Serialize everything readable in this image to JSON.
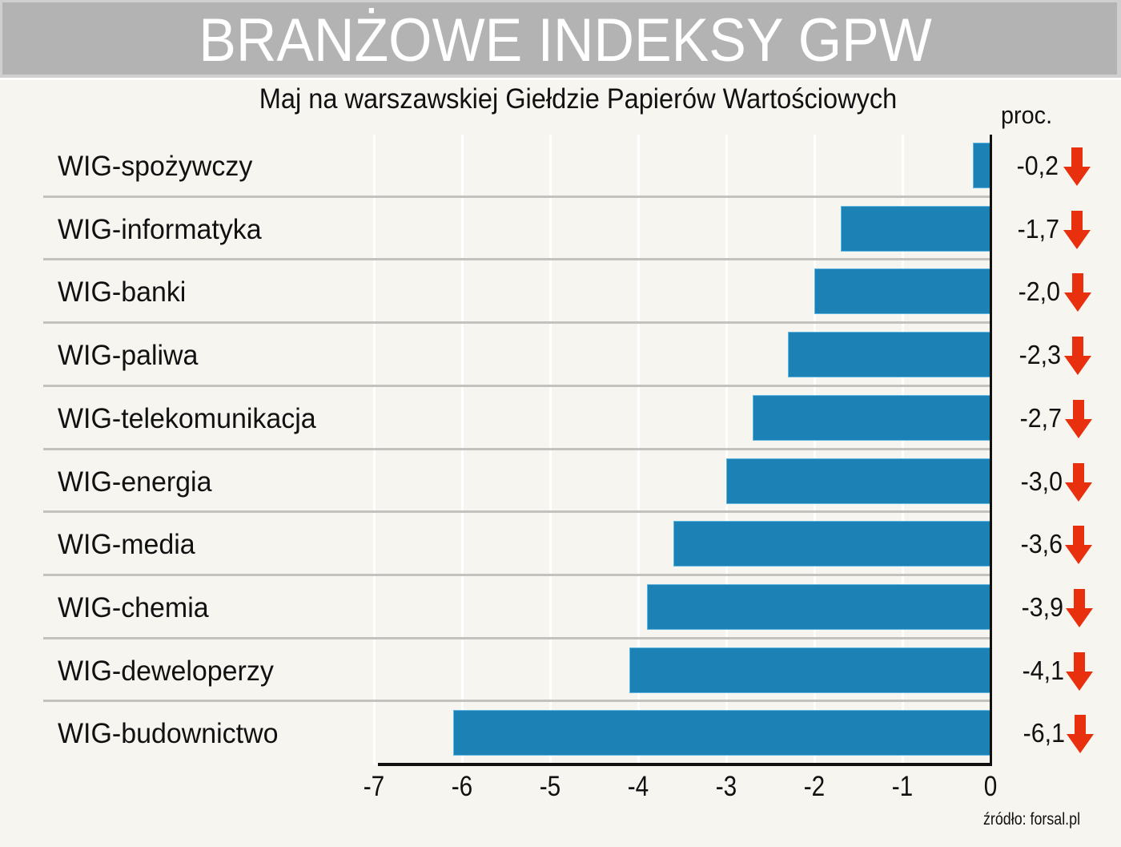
{
  "header": {
    "title": "BRANŻOWE INDEKSY GPW",
    "subtitle": "Maj na warszawskiej Giełdzie Papierów Wartościowych",
    "unit": "proc."
  },
  "source": "źródło: forsal.pl",
  "colors": {
    "bar": "#1c82b5",
    "arrow_down": "#e8300f",
    "header_bg": "#b3b3b3",
    "background": "#f7f5f0"
  },
  "rows": [
    {
      "label": "WIG-spożywczy",
      "value": -0.2,
      "value_text": "-0,2",
      "trend_icon": "arrow-down-icon"
    },
    {
      "label": "WIG-informatyka",
      "value": -1.7,
      "value_text": "-1,7",
      "trend_icon": "arrow-down-icon"
    },
    {
      "label": "WIG-banki",
      "value": -2.0,
      "value_text": "-2,0",
      "trend_icon": "arrow-down-icon"
    },
    {
      "label": "WIG-paliwa",
      "value": -2.3,
      "value_text": "-2,3",
      "trend_icon": "arrow-down-icon"
    },
    {
      "label": "WIG-telekomunikacja",
      "value": -2.7,
      "value_text": "-2,7",
      "trend_icon": "arrow-down-icon"
    },
    {
      "label": "WIG-energia",
      "value": -3.0,
      "value_text": "-3,0",
      "trend_icon": "arrow-down-icon"
    },
    {
      "label": "WIG-media",
      "value": -3.6,
      "value_text": "-3,6",
      "trend_icon": "arrow-down-icon"
    },
    {
      "label": "WIG-chemia",
      "value": -3.9,
      "value_text": "-3,9",
      "trend_icon": "arrow-down-icon"
    },
    {
      "label": "WIG-deweloperzy",
      "value": -4.1,
      "value_text": "-4,1",
      "trend_icon": "arrow-down-icon"
    },
    {
      "label": "WIG-budownictwo",
      "value": -6.1,
      "value_text": "-6,1",
      "trend_icon": "arrow-down-icon"
    }
  ],
  "axis": {
    "ticks": [
      "-7",
      "-6",
      "-5",
      "-4",
      "-3",
      "-2",
      "-1",
      "0"
    ]
  },
  "chart_data": {
    "type": "bar",
    "orientation": "horizontal",
    "title": "BRANŻOWE INDEKSY GPW",
    "subtitle": "Maj na warszawskiej Giełdzie Papierów Wartościowych",
    "categories": [
      "WIG-spożywczy",
      "WIG-informatyka",
      "WIG-banki",
      "WIG-paliwa",
      "WIG-telekomunikacja",
      "WIG-energia",
      "WIG-media",
      "WIG-chemia",
      "WIG-deweloperzy",
      "WIG-budownictwo"
    ],
    "values": [
      -0.2,
      -1.7,
      -2.0,
      -2.3,
      -2.7,
      -3.0,
      -3.6,
      -3.9,
      -4.1,
      -6.1
    ],
    "xlabel": "",
    "ylabel": "",
    "unit": "proc.",
    "xlim": [
      -7,
      0
    ],
    "xticks": [
      -7,
      -6,
      -5,
      -4,
      -3,
      -2,
      -1,
      0
    ],
    "grid": true,
    "legend": null,
    "annotations": [
      "źródło: forsal.pl"
    ]
  }
}
